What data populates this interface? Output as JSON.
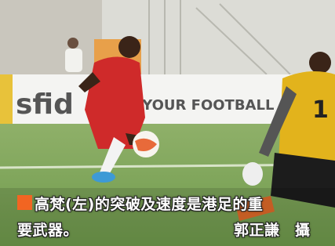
{
  "banner": {
    "left_text": "sfid",
    "right_text": "D YOUR FOOTBALL"
  },
  "jersey_number": "1",
  "caption": {
    "lines": [
      "高梵(左)的突破及速度是港足的重",
      "要武器。"
    ],
    "credit": "郭正謙　攝"
  }
}
